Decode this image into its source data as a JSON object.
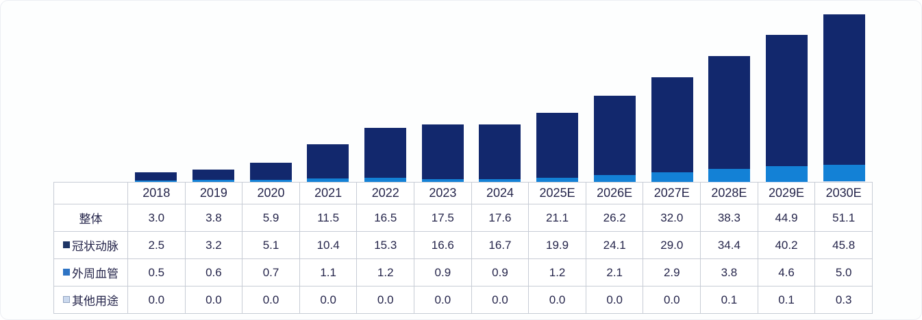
{
  "chart_data": {
    "type": "bar",
    "stacked": true,
    "title": "",
    "xlabel": "",
    "ylabel": "",
    "grid": false,
    "axes_visible": false,
    "legend_position": "table-row-labels",
    "ylim": [
      0,
      51.1
    ],
    "categories": [
      "2018",
      "2019",
      "2020",
      "2021",
      "2022",
      "2023",
      "2024",
      "2025E",
      "2026E",
      "2027E",
      "2028E",
      "2029E",
      "2030E"
    ],
    "series": [
      {
        "key": "coronary",
        "name": "冠状动脉",
        "color": "#12286d",
        "legend_marker_color": "#1e3565",
        "legend_marker_border": "",
        "values": [
          2.5,
          3.2,
          5.1,
          10.4,
          15.3,
          16.6,
          16.7,
          19.9,
          24.1,
          29.0,
          34.4,
          40.2,
          45.8
        ]
      },
      {
        "key": "peripheral",
        "name": "外周血管",
        "color": "#1381d6",
        "legend_marker_color": "#2e74c4",
        "legend_marker_border": "",
        "values": [
          0.5,
          0.6,
          0.7,
          1.1,
          1.2,
          0.9,
          0.9,
          1.2,
          2.1,
          2.9,
          3.8,
          4.6,
          5.0
        ]
      },
      {
        "key": "other",
        "name": "其他用途",
        "color": "#cbd9ee",
        "legend_marker_color": "#cbd9ee",
        "legend_marker_border": "#93a5c1",
        "values": [
          0.0,
          0.0,
          0.0,
          0.0,
          0.0,
          0.0,
          0.0,
          0.0,
          0.0,
          0.0,
          0.1,
          0.1,
          0.3
        ]
      }
    ],
    "total_row": {
      "key": "total",
      "name": "整体",
      "values": [
        3.0,
        3.8,
        5.9,
        11.5,
        16.5,
        17.5,
        17.6,
        21.1,
        26.2,
        32.0,
        38.3,
        44.9,
        51.1
      ]
    },
    "stack_order_bottom_to_top": [
      "other",
      "peripheral",
      "coronary"
    ],
    "table_row_order": [
      "total",
      "coronary",
      "peripheral",
      "other"
    ],
    "value_decimals": 1
  },
  "style": {
    "table_border_color": "#c7ccd5",
    "text_color": "#24244a",
    "background_color": "#fdfefe"
  }
}
